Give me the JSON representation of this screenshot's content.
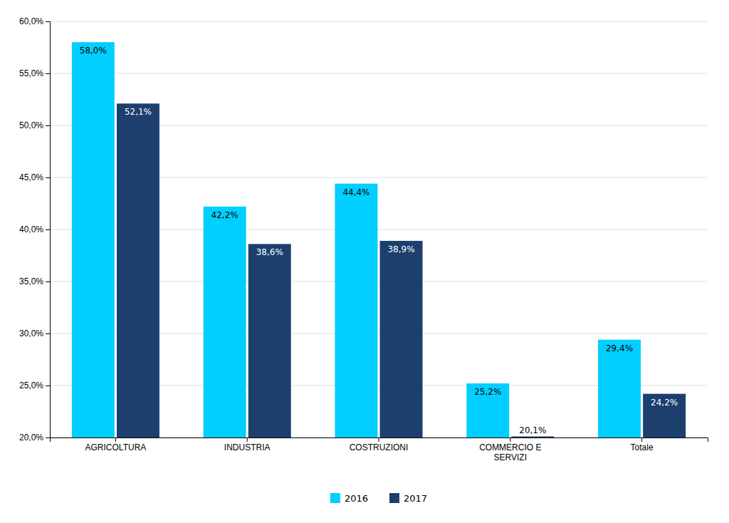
{
  "chart_data": {
    "type": "bar",
    "categories": [
      "AGRICOLTURA",
      "INDUSTRIA",
      "COSTRUZIONI",
      "COMMERCIO E\nSERVIZI",
      "Totale"
    ],
    "series": [
      {
        "name": "2016",
        "color": "#00CFFF",
        "values": [
          58.0,
          42.2,
          44.4,
          25.2,
          29.4
        ],
        "value_labels": [
          "58,0%",
          "42,2%",
          "44,4%",
          "25,2%",
          "29,4%"
        ]
      },
      {
        "name": "2017",
        "color": "#1C3F6E",
        "values": [
          52.1,
          38.6,
          38.9,
          20.1,
          24.2
        ],
        "value_labels": [
          "52,1%",
          "38,6%",
          "38,9%",
          "20,1%",
          "24,2%"
        ]
      }
    ],
    "ylim": [
      20.0,
      60.0
    ],
    "yticks": [
      {
        "value": 20.0,
        "label": "20,0%"
      },
      {
        "value": 25.0,
        "label": "25,0%"
      },
      {
        "value": 30.0,
        "label": "30,0%"
      },
      {
        "value": 35.0,
        "label": "35,0%"
      },
      {
        "value": 40.0,
        "label": "40,0%"
      },
      {
        "value": 45.0,
        "label": "45,0%"
      },
      {
        "value": 50.0,
        "label": "50,0%"
      },
      {
        "value": 55.0,
        "label": "55,0%"
      },
      {
        "value": 60.0,
        "label": "60,0%"
      }
    ],
    "grid": true,
    "data_labels": true,
    "legend": "bottom"
  }
}
